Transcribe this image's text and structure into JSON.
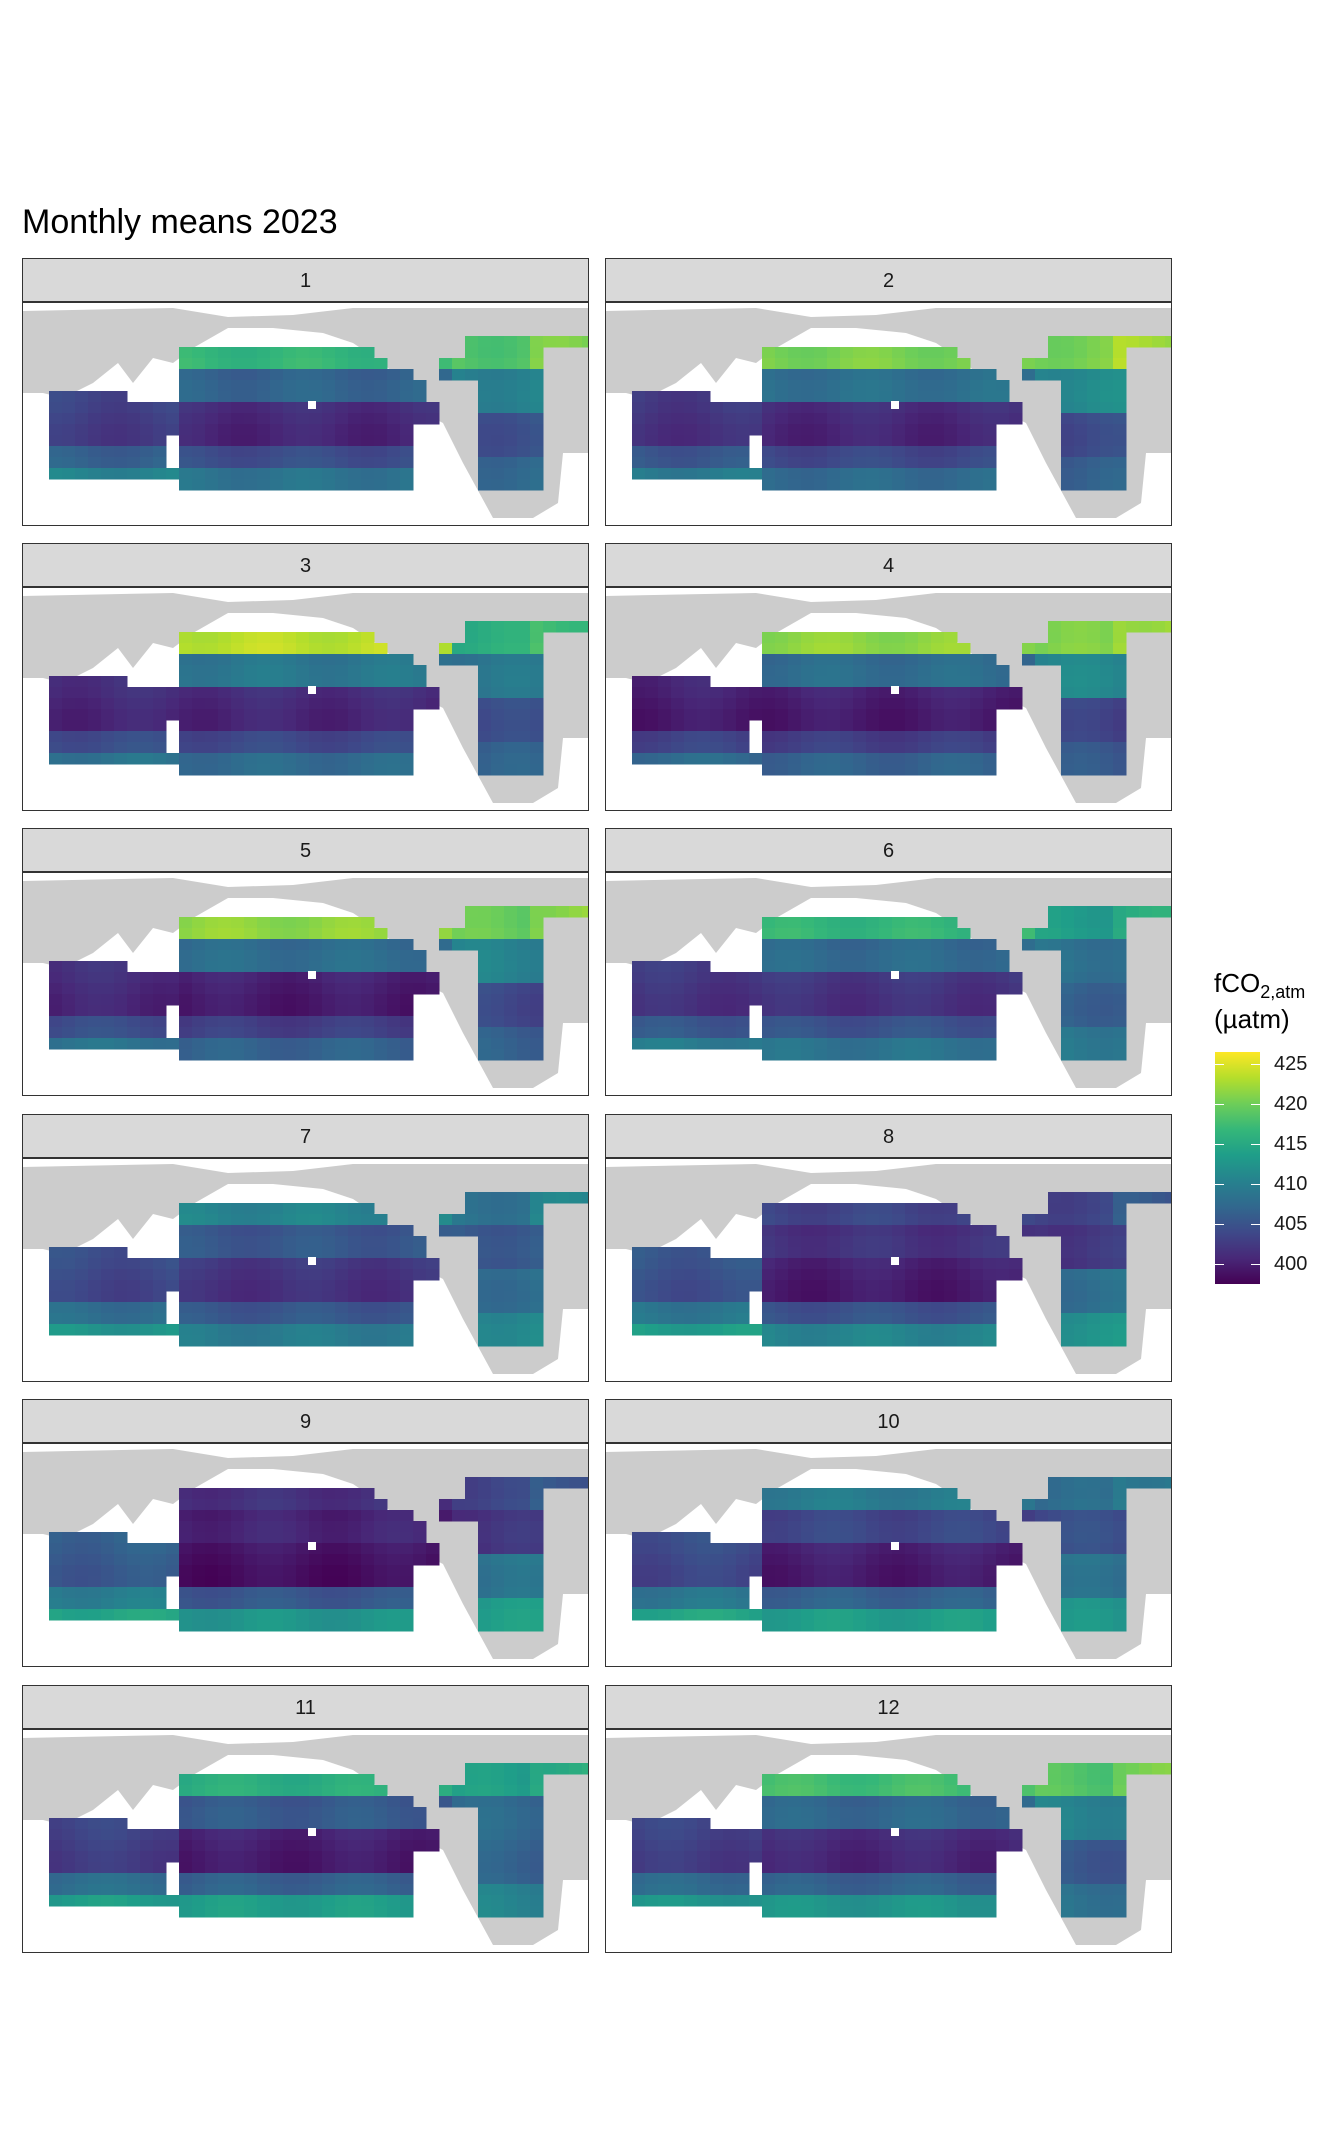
{
  "title": "Monthly means 2023",
  "legend": {
    "title_main": "fCO",
    "title_sub": "2,atm",
    "unit": "(µatm)",
    "ticks": [
      "425",
      "420",
      "415",
      "410",
      "405",
      "400"
    ],
    "min": 397.5,
    "max": 426.5
  },
  "colors": {
    "land": "#cccccc",
    "ocean_bg": "#ffffff",
    "viridis": [
      "#440154",
      "#482878",
      "#3e4989",
      "#31688e",
      "#26828e",
      "#1f9e89",
      "#35b779",
      "#6ece58",
      "#b5de2b",
      "#fde725"
    ]
  },
  "chart_data": {
    "type": "heatmap",
    "title": "Monthly means 2023",
    "variable": "fCO2,atm (µatm)",
    "legend_position": "right",
    "color_scale": "viridis",
    "scale_range": [
      397.5,
      426.5
    ],
    "panels": [
      {
        "label": "1",
        "month": 1,
        "values": {
          "north_pacific": 417,
          "north_atlantic": 419,
          "tropical_pacific": 401,
          "south_pacific": 408,
          "indian_ocean": 403,
          "southern_ocean": 410,
          "south_atlantic": 407
        }
      },
      {
        "label": "2",
        "month": 2,
        "values": {
          "north_pacific": 421,
          "north_atlantic": 421,
          "tropical_pacific": 401,
          "south_pacific": 407,
          "indian_ocean": 402,
          "southern_ocean": 409,
          "south_atlantic": 406
        }
      },
      {
        "label": "3",
        "month": 3,
        "values": {
          "north_pacific": 424,
          "north_atlantic": 416,
          "tropical_pacific": 401,
          "south_pacific": 407,
          "indian_ocean": 401,
          "southern_ocean": 408,
          "south_atlantic": 406
        }
      },
      {
        "label": "4",
        "month": 4,
        "values": {
          "north_pacific": 422,
          "north_atlantic": 421,
          "tropical_pacific": 400,
          "south_pacific": 406,
          "indian_ocean": 400,
          "southern_ocean": 407,
          "south_atlantic": 405
        }
      },
      {
        "label": "5",
        "month": 5,
        "values": {
          "north_pacific": 422,
          "north_atlantic": 420,
          "tropical_pacific": 400,
          "south_pacific": 406,
          "indian_ocean": 401,
          "southern_ocean": 408,
          "south_atlantic": 406
        }
      },
      {
        "label": "6",
        "month": 6,
        "values": {
          "north_pacific": 417,
          "north_atlantic": 414,
          "tropical_pacific": 402,
          "south_pacific": 408,
          "indian_ocean": 402,
          "southern_ocean": 409,
          "south_atlantic": 409
        }
      },
      {
        "label": "7",
        "month": 7,
        "values": {
          "north_pacific": 411,
          "north_atlantic": 409,
          "tropical_pacific": 402,
          "south_pacific": 409,
          "indian_ocean": 404,
          "southern_ocean": 412,
          "south_atlantic": 411
        }
      },
      {
        "label": "8",
        "month": 8,
        "values": {
          "north_pacific": 404,
          "north_atlantic": 404,
          "tropical_pacific": 400,
          "south_pacific": 410,
          "indian_ocean": 405,
          "southern_ocean": 413,
          "south_atlantic": 412
        }
      },
      {
        "label": "9",
        "month": 9,
        "values": {
          "north_pacific": 402,
          "north_atlantic": 404,
          "tropical_pacific": 399,
          "south_pacific": 412,
          "indian_ocean": 406,
          "southern_ocean": 414,
          "south_atlantic": 413
        }
      },
      {
        "label": "10",
        "month": 10,
        "values": {
          "north_pacific": 410,
          "north_atlantic": 408,
          "tropical_pacific": 400,
          "south_pacific": 413,
          "indian_ocean": 404,
          "southern_ocean": 414,
          "south_atlantic": 412
        }
      },
      {
        "label": "11",
        "month": 11,
        "values": {
          "north_pacific": 416,
          "north_atlantic": 414,
          "tropical_pacific": 400,
          "south_pacific": 413,
          "indian_ocean": 403,
          "southern_ocean": 413,
          "south_atlantic": 410
        }
      },
      {
        "label": "12",
        "month": 12,
        "values": {
          "north_pacific": 418,
          "north_atlantic": 419,
          "tropical_pacific": 401,
          "south_pacific": 412,
          "indian_ocean": 403,
          "southern_ocean": 412,
          "south_atlantic": 408
        }
      }
    ]
  }
}
